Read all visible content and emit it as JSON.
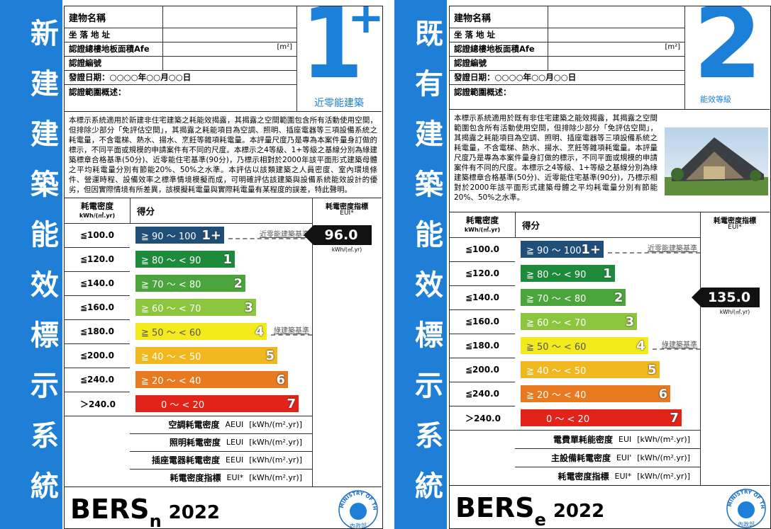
{
  "labels": [
    {
      "side_title": "新建建築能效標示系統",
      "fields": [
        "建物名稱",
        "坐 落 地 址",
        "認證總樓地板面積Afe",
        "認證編號",
        "發證日期：○○○○年○○月○○日",
        "認證範圍概述："
      ],
      "area_unit": "[m²]",
      "grade": "1",
      "grade_plus": "+",
      "grade_caption": "近零能建築",
      "description": "本標示系統適用於新建非住宅建築之耗能效揭露，其揭露之空間範圍包含所有活動使用空間，但排除少部分「免評估空間」，其揭露之耗能項目為空調、照明、插座電器等三項設備系統之耗電量，不含電梯、熱水、揚水、烹飪等雜項耗電量。本評量尺度乃是專為本案件量身訂做的標示，不同平面或規模的申請案件有不同的尺度。本標示之4等級、1+等級之基線分別為綠建築標章合格基準(50分)、近零能住宅基準(90分)，乃標示相對於2000年該平面形式建築母體之平均耗電量分別有節能20%、50%之水準。本評估以該類建築之人員密度、室內環境條件、營運時程、設備效率之標準情境模擬而成，可明確評估該建築與設備系統能效設計的優劣，但因實際情境有所差異，該模擬耗電量與實際耗電量有某程度的誤差，特此聲明。",
      "table_headers": {
        "eui": "耗電密度",
        "eui_unit": "kWh/(㎡.yr)",
        "score": "得分",
        "index": "耗電密度指標",
        "index_unit": "EUI*"
      },
      "rows": [
        {
          "eui": "≦100.0",
          "score": "≧ 90 ～ 100",
          "grade": "1+",
          "color": "#1f4e79",
          "reference": "近零能建築基準"
        },
        {
          "eui": "≦120.0",
          "score": "≧ 80 ～ < 90",
          "grade": "1",
          "color": "#1e8a3c"
        },
        {
          "eui": "≦140.0",
          "score": "≧ 70 ～ < 80",
          "grade": "2",
          "color": "#4aa63a"
        },
        {
          "eui": "≦160.0",
          "score": "≧ 60 ～ < 70",
          "grade": "3",
          "color": "#8cc63f"
        },
        {
          "eui": "≦180.0",
          "score": "≧ 50 ～ < 60",
          "grade": "4",
          "color": "#f2ea1c",
          "reference": "綠建築基準"
        },
        {
          "eui": "≦200.0",
          "score": "≧ 40 ～ < 50",
          "grade": "5",
          "color": "#f0b71e"
        },
        {
          "eui": "≦240.0",
          "score": "≧ 20 ～ < 40",
          "grade": "6",
          "color": "#e8791e"
        },
        {
          "eui": "＞240.0",
          "score": "0 ～ < 20",
          "grade": "7",
          "color": "#e2231a"
        }
      ],
      "indicator": {
        "value": "96.0",
        "unit": "kWh/(㎡.yr)"
      },
      "footer": [
        {
          "name": "空調耗電密度",
          "code": "AEUI",
          "unit": "[kWh/(m².yr)]"
        },
        {
          "name": "照明耗電密度",
          "code": "LEUI",
          "unit": "[kWh/(m².yr)]"
        },
        {
          "name": "插座電器耗電密度",
          "code": "EEUI",
          "unit": "[kWh/(m².yr)]"
        },
        {
          "name": "耗電密度指標",
          "code": "EUI*",
          "unit": "[kWh/(m².yr)]"
        }
      ],
      "brand": {
        "name": "BERS",
        "sub": "n",
        "year": "2022"
      },
      "logo": {
        "ring": "MINISTRY OF THE INTERIOR",
        "name": "內政部"
      }
    },
    {
      "side_title": "既有建築能效標示系統",
      "fields": [
        "建物名稱",
        "坐 落 地 址",
        "認證總樓地板面積Afe",
        "認證編號",
        "發證日期：○○○○年○○月○○日",
        "認證範圍概述："
      ],
      "area_unit": "[m²]",
      "grade": "2",
      "grade_caption": "能效等級",
      "description": "本標示系統適用於既有非住宅建築之能效揭露，其揭露之空間範圍包含所有活動使用空間，但排除少部分「免評估空間」，其揭露之耗能項目為空調、照明、插座電器等三項設備系統之耗電量，不含電梯、熱水、揚水、烹飪等雜項耗電量。本評量尺度乃是專為本案件量身訂做的標示，不同平面或規模的申請案件有不同的尺度。本標示之4等級、1+等級之基線分別為綠建築標章合格基準(50分)、近零能住宅基準(90分)，乃標示相對於2000年該平面形式建築母體之平均耗電量分別有節能20%、50%之水準。",
      "table_headers": {
        "eui": "耗電密度",
        "eui_unit": "kWh/(㎡.yr)",
        "score": "得分",
        "index": "耗電密度指標",
        "index_unit": "EUI*"
      },
      "rows": [
        {
          "eui": "≦100.0",
          "score": "≧ 90 ～ 100",
          "grade": "1+",
          "color": "#1f4e79",
          "reference": "近零能建築基準"
        },
        {
          "eui": "≦120.0",
          "score": "≧ 80 ～ < 90",
          "grade": "1",
          "color": "#1e8a3c"
        },
        {
          "eui": "≦140.0",
          "score": "≧ 70 ～ < 80",
          "grade": "2",
          "color": "#4aa63a"
        },
        {
          "eui": "≦160.0",
          "score": "≧ 60 ～ < 70",
          "grade": "3",
          "color": "#8cc63f"
        },
        {
          "eui": "≦180.0",
          "score": "≧ 50 ～ < 60",
          "grade": "4",
          "color": "#f2ea1c",
          "reference": "綠建築基準"
        },
        {
          "eui": "≦200.0",
          "score": "≧ 40 ～ < 50",
          "grade": "5",
          "color": "#f0b71e"
        },
        {
          "eui": "≦240.0",
          "score": "≧ 20 ～ < 40",
          "grade": "6",
          "color": "#e8791e"
        },
        {
          "eui": "＞240.0",
          "score": "0 ～ < 20",
          "grade": "7",
          "color": "#e2231a"
        }
      ],
      "indicator": {
        "value": "135.0",
        "unit": "kWh/(㎡.yr)"
      },
      "footer": [
        {
          "name": "電費單耗能密度",
          "code": "EUI",
          "unit": "[kWh/(m².yr)]"
        },
        {
          "name": "主設備耗電密度",
          "code": "EUI'",
          "unit": "[kWh/(m².yr)]"
        },
        {
          "name": "耗電密度指標",
          "code": "EUI*",
          "unit": "[kWh/(m².yr)]"
        }
      ],
      "brand": {
        "name": "BERS",
        "sub": "e",
        "year": "2022"
      },
      "logo": {
        "ring": "MINISTRY OF THE INTERIOR",
        "name": "內政部"
      }
    }
  ]
}
